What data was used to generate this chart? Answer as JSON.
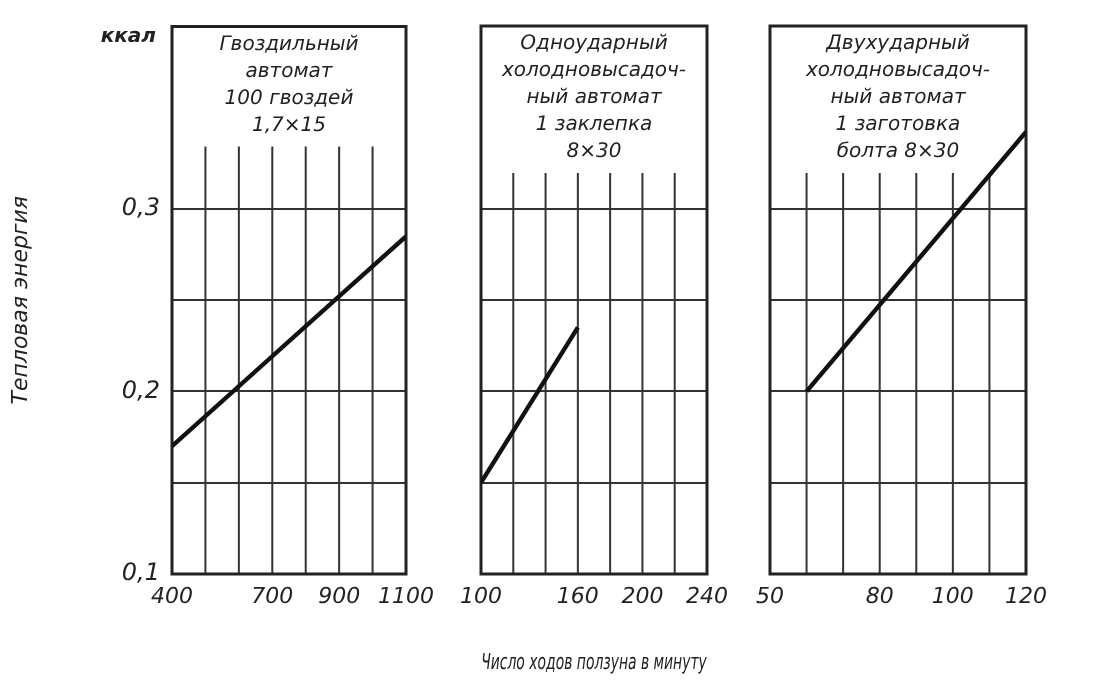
{
  "chart_data": [
    {
      "type": "line",
      "title": "Гвоздильный\nавтомат\n100 гвоздей\n1,7×15",
      "ylabel": "Тепловая энергия",
      "annotations": [
        "ккал"
      ],
      "grid": true,
      "x": [
        400,
        1100
      ],
      "series": [
        {
          "color": "#111111",
          "values": [
            0.17,
            0.285
          ]
        }
      ],
      "xlim": [
        400,
        1100
      ],
      "xticks": [
        400,
        {
          "value": 500,
          "label": null
        },
        {
          "value": 600,
          "label": null
        },
        700,
        {
          "value": 800,
          "label": null
        },
        900,
        {
          "value": 1000,
          "label": null
        },
        1100
      ],
      "ylim": [
        0.1,
        0.4
      ],
      "yticks": [
        {
          "value": 0.1,
          "label": "0,1"
        },
        {
          "value": 0.15,
          "label": null
        },
        {
          "value": 0.2,
          "label": "0,2"
        },
        {
          "value": 0.25,
          "label": null
        },
        {
          "value": 0.3,
          "label": "0,3"
        }
      ]
    },
    {
      "type": "line",
      "title": "Одноударный\nхолодновысадоч-\nный автомат\n1 заклепка\n8×30",
      "xlabel": "Число ходов ползуна в минуту",
      "grid": true,
      "tick_labels": "x",
      "x": [
        100,
        160
      ],
      "series": [
        {
          "color": "#111111",
          "values": [
            0.15,
            0.235
          ]
        }
      ],
      "xlim": [
        100,
        240
      ],
      "xticks": [
        100,
        {
          "value": 120,
          "label": null
        },
        {
          "value": 140,
          "label": null
        },
        160,
        {
          "value": 180,
          "label": null
        },
        200,
        {
          "value": 220,
          "label": null
        },
        240
      ],
      "ylim": [
        0.1,
        0.4
      ],
      "yticks": [
        {
          "value": 0.1,
          "label": null
        },
        {
          "value": 0.15,
          "label": null
        },
        {
          "value": 0.2,
          "label": null
        },
        {
          "value": 0.25,
          "label": null
        },
        {
          "value": 0.3,
          "label": null
        }
      ]
    },
    {
      "type": "line",
      "title": "Двухударный\nхолодновысадоч-\nный автомат\n1 заготовка\nболта 8×30",
      "grid": true,
      "tick_labels": "x",
      "x": [
        60,
        120
      ],
      "series": [
        {
          "color": "#111111",
          "values": [
            0.2,
            0.342
          ]
        }
      ],
      "xlim": [
        50,
        120
      ],
      "xticks": [
        50,
        {
          "value": 60,
          "label": null
        },
        {
          "value": 70,
          "label": null
        },
        80,
        {
          "value": 90,
          "label": null
        },
        100,
        {
          "value": 110,
          "label": null
        },
        120
      ],
      "ylim": [
        0.1,
        0.4
      ],
      "yticks": [
        {
          "value": 0.1,
          "label": null
        },
        {
          "value": 0.15,
          "label": null
        },
        {
          "value": 0.2,
          "label": null
        },
        {
          "value": 0.25,
          "label": null
        },
        {
          "value": 0.3,
          "label": null
        }
      ]
    }
  ]
}
